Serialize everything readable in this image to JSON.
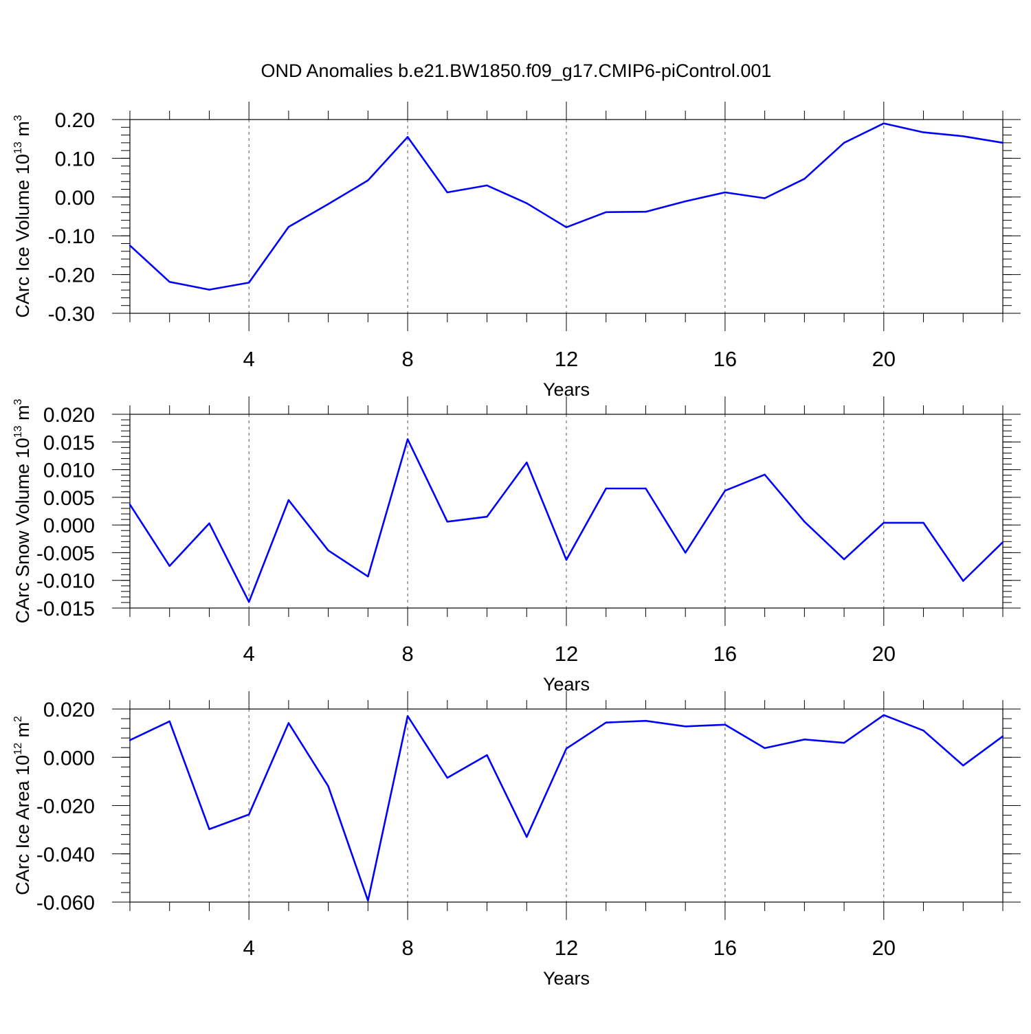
{
  "title": "OND Anomalies b.e21.BW1850.f09_g17.CMIP6-piControl.001",
  "colors": {
    "line": "#0000ff",
    "axes": "#000000",
    "grid": "#555555"
  },
  "chart_data": [
    {
      "type": "line",
      "xlabel": "Years",
      "ylabel": {
        "prefix": "CArc Ice Volume 10",
        "exp": "13",
        "unit": " m",
        "unit_exp": "3"
      },
      "xlim": [
        1,
        23
      ],
      "ylim": [
        -0.3,
        0.2
      ],
      "x_ticks": [
        4,
        8,
        12,
        16,
        20
      ],
      "y_ticks": [
        -0.3,
        -0.2,
        -0.1,
        0.0,
        0.1,
        0.2
      ],
      "y_tick_labels": [
        "-0.30",
        "-0.20",
        "-0.10",
        "0.00",
        "0.10",
        "0.20"
      ],
      "y_minor_step": 0.02,
      "grid": "dashed vertical at major x ticks",
      "x": [
        1,
        2,
        3,
        4,
        5,
        6,
        7,
        8,
        9,
        10,
        11,
        12,
        13,
        14,
        15,
        16,
        17,
        18,
        19,
        20,
        21,
        22,
        23
      ],
      "series": [
        {
          "values": [
            -0.125,
            -0.219,
            -0.239,
            -0.221,
            -0.077,
            -0.018,
            0.043,
            0.155,
            0.012,
            0.03,
            -0.016,
            -0.078,
            -0.039,
            -0.038,
            -0.011,
            0.012,
            -0.003,
            0.047,
            0.14,
            0.19,
            0.167,
            0.157,
            0.14
          ]
        }
      ]
    },
    {
      "type": "line",
      "xlabel": "Years",
      "ylabel": {
        "prefix": "CArc Snow Volume 10",
        "exp": "13",
        "unit": " m",
        "unit_exp": "3"
      },
      "xlim": [
        1,
        23
      ],
      "ylim": [
        -0.015,
        0.02
      ],
      "x_ticks": [
        4,
        8,
        12,
        16,
        20
      ],
      "y_ticks": [
        -0.015,
        -0.01,
        -0.005,
        0.0,
        0.005,
        0.01,
        0.015,
        0.02
      ],
      "y_tick_labels": [
        "-0.015",
        "-0.010",
        "-0.005",
        "0.000",
        "0.005",
        "0.010",
        "0.015",
        "0.020"
      ],
      "y_minor_step": 0.001,
      "grid": "dashed vertical at major x ticks",
      "x": [
        1,
        2,
        3,
        4,
        5,
        6,
        7,
        8,
        9,
        10,
        11,
        12,
        13,
        14,
        15,
        16,
        17,
        18,
        19,
        20,
        21,
        22,
        23
      ],
      "series": [
        {
          "values": [
            0.0037,
            -0.0074,
            0.0003,
            -0.0139,
            0.0045,
            -0.0046,
            -0.0093,
            0.0155,
            0.0006,
            0.0015,
            0.0113,
            -0.0063,
            0.0066,
            0.0066,
            -0.005,
            0.0062,
            0.0091,
            0.0006,
            -0.0062,
            0.0004,
            0.0004,
            -0.0101,
            -0.0031
          ]
        }
      ]
    },
    {
      "type": "line",
      "xlabel": "Years",
      "ylabel": {
        "prefix": "CArc Ice Area 10",
        "exp": "12",
        "unit": " m",
        "unit_exp": "2"
      },
      "xlim": [
        1,
        23
      ],
      "ylim": [
        -0.06,
        0.02
      ],
      "x_ticks": [
        4,
        8,
        12,
        16,
        20
      ],
      "y_ticks": [
        -0.06,
        -0.04,
        -0.02,
        0.0,
        0.02
      ],
      "y_tick_labels": [
        "-0.060",
        "-0.040",
        "-0.020",
        "0.000",
        "0.020"
      ],
      "y_minor_step": 0.004,
      "grid": "dashed vertical at major x ticks",
      "x": [
        1,
        2,
        3,
        4,
        5,
        6,
        7,
        8,
        9,
        10,
        11,
        12,
        13,
        14,
        15,
        16,
        17,
        18,
        19,
        20,
        21,
        22,
        23
      ],
      "series": [
        {
          "values": [
            0.0071,
            0.0149,
            -0.0298,
            -0.0237,
            0.0142,
            -0.012,
            -0.0594,
            0.0171,
            -0.0085,
            0.0009,
            -0.033,
            0.0036,
            0.0144,
            0.0151,
            0.0128,
            0.0135,
            0.0038,
            0.0074,
            0.006,
            0.0175,
            0.0111,
            -0.0034,
            0.0087
          ]
        }
      ]
    }
  ]
}
